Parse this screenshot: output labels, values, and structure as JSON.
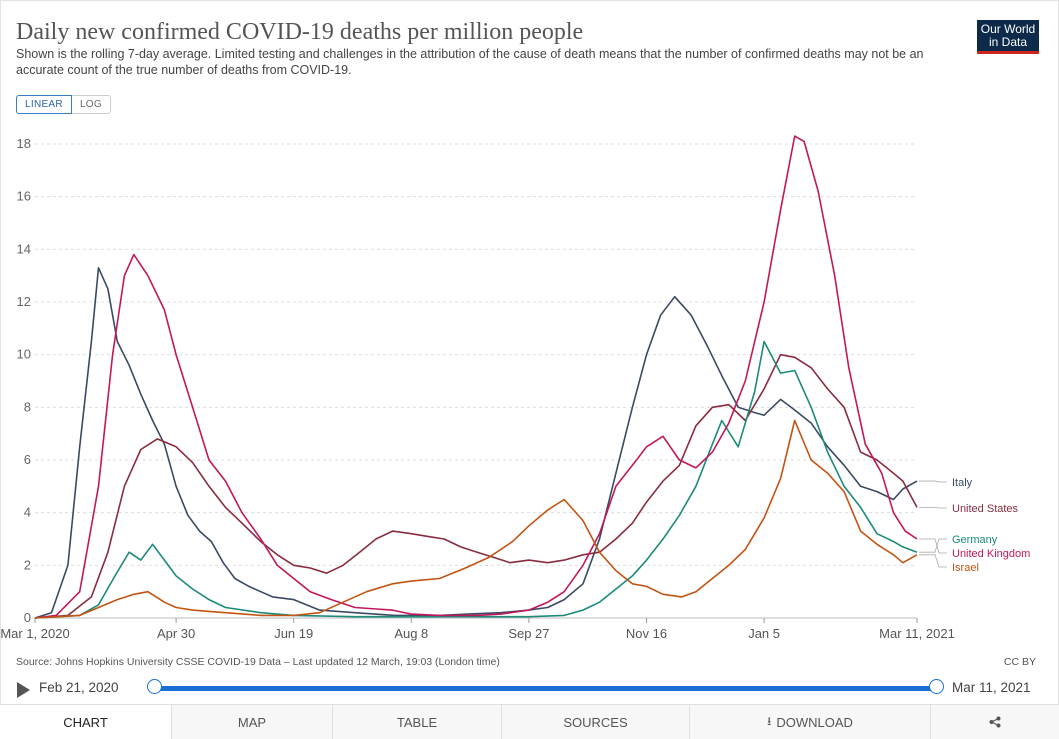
{
  "header": {
    "title": "Daily new confirmed COVID-19 deaths per million people",
    "subtitle": "Shown is the rolling 7-day average. Limited testing and challenges in the attribution of the cause of death means that the number of confirmed deaths may not be an accurate count of the true number of deaths from COVID-19.",
    "logo_line1": "Our World",
    "logo_line2": "in Data"
  },
  "scale_toggle": {
    "linear": "LINEAR",
    "log": "LOG",
    "selected": "LINEAR"
  },
  "chart_data": {
    "type": "line",
    "title": "Daily new confirmed COVID-19 deaths per million people",
    "xlabel": "",
    "ylabel": "",
    "ylim": [
      0,
      18
    ],
    "yticks": [
      0,
      2,
      4,
      6,
      8,
      10,
      12,
      14,
      16,
      18
    ],
    "xticks": [
      {
        "date": "2020-03-01",
        "label": "Mar 1, 2020"
      },
      {
        "date": "2020-04-30",
        "label": "Apr 30"
      },
      {
        "date": "2020-06-19",
        "label": "Jun 19"
      },
      {
        "date": "2020-08-08",
        "label": "Aug 8"
      },
      {
        "date": "2020-09-27",
        "label": "Sep 27"
      },
      {
        "date": "2020-11-16",
        "label": "Nov 16"
      },
      {
        "date": "2021-01-05",
        "label": "Jan 5"
      },
      {
        "date": "2021-03-11",
        "label": "Mar 11, 2021"
      }
    ],
    "xrange": [
      "2020-03-01",
      "2021-03-11"
    ],
    "grid": "horizontal dashed",
    "legend": "right, line end labels",
    "series": [
      {
        "name": "Italy",
        "color": "#3b4a63",
        "points": [
          [
            "2020-03-01",
            0.0
          ],
          [
            "2020-03-08",
            0.2
          ],
          [
            "2020-03-15",
            2.0
          ],
          [
            "2020-03-20",
            6.5
          ],
          [
            "2020-03-25",
            10.5
          ],
          [
            "2020-03-28",
            13.3
          ],
          [
            "2020-04-01",
            12.5
          ],
          [
            "2020-04-05",
            10.5
          ],
          [
            "2020-04-10",
            9.6
          ],
          [
            "2020-04-15",
            8.5
          ],
          [
            "2020-04-20",
            7.5
          ],
          [
            "2020-04-25",
            6.6
          ],
          [
            "2020-04-30",
            5.0
          ],
          [
            "2020-05-05",
            3.9
          ],
          [
            "2020-05-10",
            3.3
          ],
          [
            "2020-05-15",
            2.9
          ],
          [
            "2020-05-20",
            2.1
          ],
          [
            "2020-05-25",
            1.5
          ],
          [
            "2020-05-31",
            1.2
          ],
          [
            "2020-06-05",
            1.0
          ],
          [
            "2020-06-10",
            0.8
          ],
          [
            "2020-06-19",
            0.7
          ],
          [
            "2020-06-30",
            0.3
          ],
          [
            "2020-07-15",
            0.2
          ],
          [
            "2020-08-01",
            0.1
          ],
          [
            "2020-08-08",
            0.1
          ],
          [
            "2020-08-20",
            0.1
          ],
          [
            "2020-09-01",
            0.15
          ],
          [
            "2020-09-15",
            0.2
          ],
          [
            "2020-09-27",
            0.3
          ],
          [
            "2020-10-05",
            0.4
          ],
          [
            "2020-10-12",
            0.7
          ],
          [
            "2020-10-20",
            1.3
          ],
          [
            "2020-10-27",
            3.0
          ],
          [
            "2020-11-03",
            5.5
          ],
          [
            "2020-11-10",
            8.0
          ],
          [
            "2020-11-16",
            10.0
          ],
          [
            "2020-11-22",
            11.5
          ],
          [
            "2020-11-28",
            12.2
          ],
          [
            "2020-12-05",
            11.5
          ],
          [
            "2020-12-12",
            10.3
          ],
          [
            "2020-12-18",
            9.2
          ],
          [
            "2020-12-25",
            8.0
          ],
          [
            "2021-01-01",
            7.8
          ],
          [
            "2021-01-05",
            7.7
          ],
          [
            "2021-01-12",
            8.3
          ],
          [
            "2021-01-18",
            7.9
          ],
          [
            "2021-01-25",
            7.4
          ],
          [
            "2021-02-01",
            6.5
          ],
          [
            "2021-02-08",
            5.8
          ],
          [
            "2021-02-15",
            5.0
          ],
          [
            "2021-02-22",
            4.8
          ],
          [
            "2021-03-01",
            4.5
          ],
          [
            "2021-03-05",
            4.9
          ],
          [
            "2021-03-11",
            5.2
          ]
        ]
      },
      {
        "name": "United States",
        "color": "#8a2c3f",
        "points": [
          [
            "2020-03-01",
            0.0
          ],
          [
            "2020-03-15",
            0.1
          ],
          [
            "2020-03-25",
            0.8
          ],
          [
            "2020-04-01",
            2.5
          ],
          [
            "2020-04-08",
            5.0
          ],
          [
            "2020-04-15",
            6.4
          ],
          [
            "2020-04-22",
            6.8
          ],
          [
            "2020-04-30",
            6.5
          ],
          [
            "2020-05-07",
            5.9
          ],
          [
            "2020-05-14",
            5.0
          ],
          [
            "2020-05-21",
            4.2
          ],
          [
            "2020-05-28",
            3.6
          ],
          [
            "2020-06-05",
            2.9
          ],
          [
            "2020-06-12",
            2.4
          ],
          [
            "2020-06-19",
            2.0
          ],
          [
            "2020-06-26",
            1.9
          ],
          [
            "2020-07-03",
            1.7
          ],
          [
            "2020-07-10",
            2.0
          ],
          [
            "2020-07-17",
            2.5
          ],
          [
            "2020-07-24",
            3.0
          ],
          [
            "2020-07-31",
            3.3
          ],
          [
            "2020-08-08",
            3.2
          ],
          [
            "2020-08-15",
            3.1
          ],
          [
            "2020-08-22",
            3.0
          ],
          [
            "2020-08-29",
            2.7
          ],
          [
            "2020-09-05",
            2.5
          ],
          [
            "2020-09-12",
            2.3
          ],
          [
            "2020-09-19",
            2.1
          ],
          [
            "2020-09-27",
            2.2
          ],
          [
            "2020-10-05",
            2.1
          ],
          [
            "2020-10-12",
            2.2
          ],
          [
            "2020-10-20",
            2.4
          ],
          [
            "2020-10-27",
            2.5
          ],
          [
            "2020-11-03",
            3.0
          ],
          [
            "2020-11-10",
            3.6
          ],
          [
            "2020-11-16",
            4.4
          ],
          [
            "2020-11-23",
            5.2
          ],
          [
            "2020-11-30",
            5.8
          ],
          [
            "2020-12-07",
            7.3
          ],
          [
            "2020-12-14",
            8.0
          ],
          [
            "2020-12-21",
            8.1
          ],
          [
            "2020-12-28",
            7.5
          ],
          [
            "2021-01-05",
            8.7
          ],
          [
            "2021-01-12",
            10.0
          ],
          [
            "2021-01-18",
            9.9
          ],
          [
            "2021-01-25",
            9.5
          ],
          [
            "2021-02-01",
            8.7
          ],
          [
            "2021-02-08",
            8.0
          ],
          [
            "2021-02-15",
            6.3
          ],
          [
            "2021-02-22",
            6.0
          ],
          [
            "2021-03-01",
            5.5
          ],
          [
            "2021-03-05",
            5.2
          ],
          [
            "2021-03-11",
            4.2
          ]
        ]
      },
      {
        "name": "Germany",
        "color": "#1d8a7a",
        "points": [
          [
            "2020-03-01",
            0.0
          ],
          [
            "2020-03-20",
            0.1
          ],
          [
            "2020-03-28",
            0.5
          ],
          [
            "2020-04-04",
            1.6
          ],
          [
            "2020-04-10",
            2.5
          ],
          [
            "2020-04-15",
            2.2
          ],
          [
            "2020-04-20",
            2.8
          ],
          [
            "2020-04-25",
            2.2
          ],
          [
            "2020-04-30",
            1.6
          ],
          [
            "2020-05-07",
            1.1
          ],
          [
            "2020-05-14",
            0.7
          ],
          [
            "2020-05-21",
            0.4
          ],
          [
            "2020-06-05",
            0.2
          ],
          [
            "2020-06-19",
            0.1
          ],
          [
            "2020-07-15",
            0.05
          ],
          [
            "2020-08-08",
            0.05
          ],
          [
            "2020-09-27",
            0.05
          ],
          [
            "2020-10-12",
            0.1
          ],
          [
            "2020-10-20",
            0.3
          ],
          [
            "2020-10-27",
            0.6
          ],
          [
            "2020-11-03",
            1.1
          ],
          [
            "2020-11-10",
            1.6
          ],
          [
            "2020-11-16",
            2.2
          ],
          [
            "2020-11-23",
            3.0
          ],
          [
            "2020-11-30",
            3.9
          ],
          [
            "2020-12-07",
            5.0
          ],
          [
            "2020-12-14",
            6.6
          ],
          [
            "2020-12-18",
            7.5
          ],
          [
            "2020-12-25",
            6.5
          ],
          [
            "2021-01-01",
            8.6
          ],
          [
            "2021-01-05",
            10.5
          ],
          [
            "2021-01-12",
            9.3
          ],
          [
            "2021-01-18",
            9.4
          ],
          [
            "2021-01-25",
            8.0
          ],
          [
            "2021-02-01",
            6.3
          ],
          [
            "2021-02-08",
            5.0
          ],
          [
            "2021-02-15",
            4.2
          ],
          [
            "2021-02-22",
            3.2
          ],
          [
            "2021-03-01",
            2.9
          ],
          [
            "2021-03-05",
            2.7
          ],
          [
            "2021-03-11",
            2.5
          ]
        ]
      },
      {
        "name": "United Kingdom",
        "color": "#c2185b",
        "points": [
          [
            "2020-03-01",
            0.0
          ],
          [
            "2020-03-10",
            0.1
          ],
          [
            "2020-03-20",
            1.0
          ],
          [
            "2020-03-28",
            5.0
          ],
          [
            "2020-04-03",
            10.0
          ],
          [
            "2020-04-08",
            13.0
          ],
          [
            "2020-04-12",
            13.8
          ],
          [
            "2020-04-18",
            13.0
          ],
          [
            "2020-04-25",
            11.7
          ],
          [
            "2020-04-30",
            10.0
          ],
          [
            "2020-05-07",
            8.0
          ],
          [
            "2020-05-14",
            6.0
          ],
          [
            "2020-05-21",
            5.2
          ],
          [
            "2020-05-28",
            4.0
          ],
          [
            "2020-06-05",
            3.0
          ],
          [
            "2020-06-12",
            2.0
          ],
          [
            "2020-06-19",
            1.5
          ],
          [
            "2020-06-26",
            1.0
          ],
          [
            "2020-07-05",
            0.7
          ],
          [
            "2020-07-15",
            0.4
          ],
          [
            "2020-07-31",
            0.3
          ],
          [
            "2020-08-08",
            0.15
          ],
          [
            "2020-08-20",
            0.1
          ],
          [
            "2020-09-05",
            0.1
          ],
          [
            "2020-09-15",
            0.15
          ],
          [
            "2020-09-27",
            0.3
          ],
          [
            "2020-10-05",
            0.6
          ],
          [
            "2020-10-12",
            1.0
          ],
          [
            "2020-10-20",
            2.0
          ],
          [
            "2020-10-27",
            3.2
          ],
          [
            "2020-11-03",
            5.0
          ],
          [
            "2020-11-10",
            5.8
          ],
          [
            "2020-11-16",
            6.5
          ],
          [
            "2020-11-23",
            6.9
          ],
          [
            "2020-11-30",
            6.0
          ],
          [
            "2020-12-07",
            5.7
          ],
          [
            "2020-12-14",
            6.3
          ],
          [
            "2020-12-21",
            7.4
          ],
          [
            "2020-12-28",
            9.0
          ],
          [
            "2021-01-05",
            12.0
          ],
          [
            "2021-01-12",
            15.5
          ],
          [
            "2021-01-18",
            18.3
          ],
          [
            "2021-01-22",
            18.1
          ],
          [
            "2021-01-28",
            16.2
          ],
          [
            "2021-02-04",
            13.0
          ],
          [
            "2021-02-10",
            9.5
          ],
          [
            "2021-02-17",
            6.6
          ],
          [
            "2021-02-24",
            5.5
          ],
          [
            "2021-03-01",
            4.0
          ],
          [
            "2021-03-06",
            3.3
          ],
          [
            "2021-03-11",
            3.0
          ]
        ]
      },
      {
        "name": "Israel",
        "color": "#c35413",
        "points": [
          [
            "2020-03-01",
            0.0
          ],
          [
            "2020-03-20",
            0.1
          ],
          [
            "2020-03-28",
            0.4
          ],
          [
            "2020-04-05",
            0.7
          ],
          [
            "2020-04-12",
            0.9
          ],
          [
            "2020-04-18",
            1.0
          ],
          [
            "2020-04-25",
            0.6
          ],
          [
            "2020-04-30",
            0.4
          ],
          [
            "2020-05-07",
            0.3
          ],
          [
            "2020-05-14",
            0.25
          ],
          [
            "2020-05-21",
            0.2
          ],
          [
            "2020-06-05",
            0.1
          ],
          [
            "2020-06-19",
            0.1
          ],
          [
            "2020-06-30",
            0.2
          ],
          [
            "2020-07-10",
            0.6
          ],
          [
            "2020-07-20",
            1.0
          ],
          [
            "2020-07-31",
            1.3
          ],
          [
            "2020-08-08",
            1.4
          ],
          [
            "2020-08-20",
            1.5
          ],
          [
            "2020-08-31",
            1.9
          ],
          [
            "2020-09-10",
            2.3
          ],
          [
            "2020-09-20",
            2.9
          ],
          [
            "2020-09-27",
            3.5
          ],
          [
            "2020-10-05",
            4.1
          ],
          [
            "2020-10-12",
            4.5
          ],
          [
            "2020-10-20",
            3.7
          ],
          [
            "2020-10-27",
            2.5
          ],
          [
            "2020-11-03",
            1.8
          ],
          [
            "2020-11-10",
            1.3
          ],
          [
            "2020-11-16",
            1.2
          ],
          [
            "2020-11-23",
            0.9
          ],
          [
            "2020-12-01",
            0.8
          ],
          [
            "2020-12-07",
            1.0
          ],
          [
            "2020-12-14",
            1.5
          ],
          [
            "2020-12-21",
            2.0
          ],
          [
            "2020-12-28",
            2.6
          ],
          [
            "2021-01-05",
            3.8
          ],
          [
            "2021-01-12",
            5.3
          ],
          [
            "2021-01-18",
            7.5
          ],
          [
            "2021-01-25",
            6.0
          ],
          [
            "2021-02-01",
            5.5
          ],
          [
            "2021-02-08",
            4.8
          ],
          [
            "2021-02-15",
            3.3
          ],
          [
            "2021-02-22",
            2.8
          ],
          [
            "2021-03-01",
            2.4
          ],
          [
            "2021-03-05",
            2.1
          ],
          [
            "2021-03-11",
            2.4
          ]
        ]
      }
    ]
  },
  "footer": {
    "source": "Source: Johns Hopkins University CSSE COVID-19 Data – Last updated 12 March, 19:03 (London time)",
    "license": "CC BY"
  },
  "timeline": {
    "start_label": "Feb 21, 2020",
    "end_label": "Mar 11, 2021"
  },
  "tabs": [
    {
      "label": "CHART",
      "icon": ""
    },
    {
      "label": "MAP",
      "icon": ""
    },
    {
      "label": "TABLE",
      "icon": ""
    },
    {
      "label": "SOURCES",
      "icon": ""
    },
    {
      "label": "DOWNLOAD",
      "icon": "download-icon"
    },
    {
      "label": "",
      "icon": "share-icon"
    }
  ]
}
